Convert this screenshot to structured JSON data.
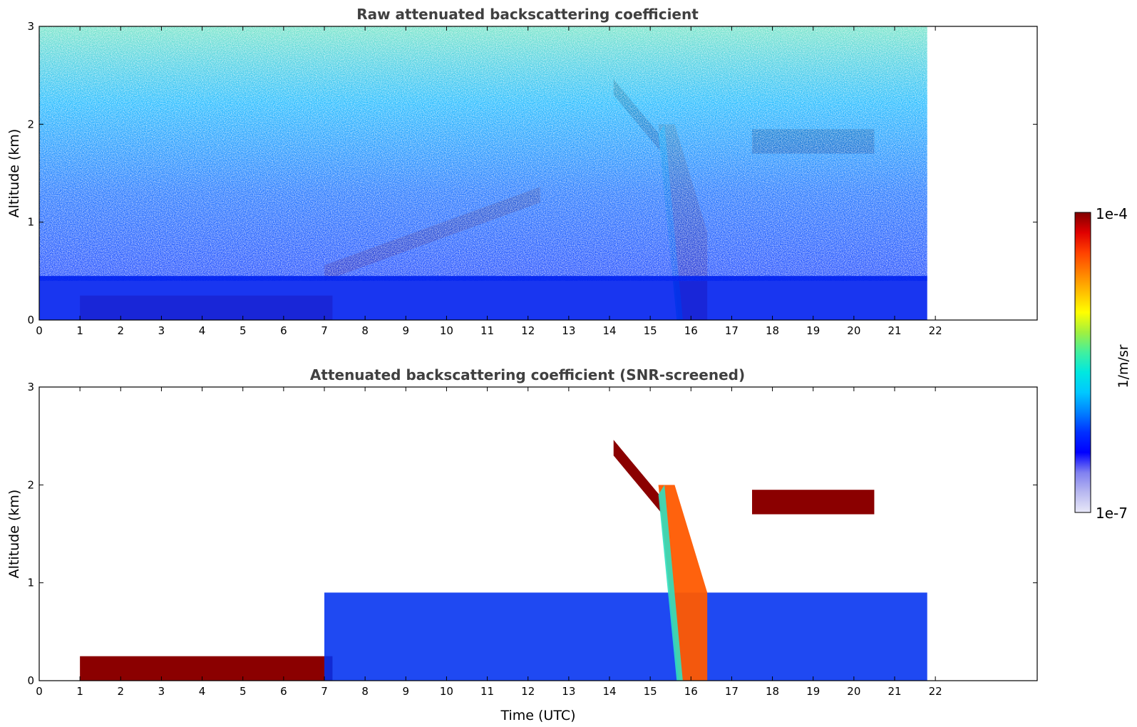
{
  "chart_data": [
    {
      "type": "heatmap",
      "title": "Raw attenuated backscattering coefficient",
      "xlabel": "",
      "ylabel": "Altitude (km)",
      "xlim": [
        0,
        24.5
      ],
      "ylim": [
        0,
        3
      ],
      "x_ticks": [
        "0",
        "1",
        "2",
        "3",
        "4",
        "5",
        "6",
        "7",
        "8",
        "9",
        "10",
        "11",
        "12",
        "13",
        "14",
        "15",
        "16",
        "17",
        "18",
        "19",
        "20",
        "21",
        "22"
      ],
      "y_ticks": [
        "0",
        "1",
        "2",
        "3"
      ],
      "data_extent_hours": [
        0,
        21.8
      ],
      "value_scale": "log",
      "features": [
        {
          "kind": "boundary_layer_aerosol",
          "start_h": 1.0,
          "end_h": 7.2,
          "alt_km": [
            0.0,
            0.25
          ],
          "level": "high"
        },
        {
          "kind": "rising_aerosol_layer",
          "start_h": 7.0,
          "end_h": 12.3,
          "alt_km_start": 0.4,
          "alt_km_end": 1.2,
          "level": "high"
        },
        {
          "kind": "cloud_layer",
          "start_h": 14.1,
          "end_h": 15.3,
          "alt_km_start": 2.3,
          "alt_km_end": 1.7,
          "level": "saturated"
        },
        {
          "kind": "precipitation_column",
          "start_h": 15.2,
          "end_h": 16.4,
          "alt_km": [
            0.0,
            2.0
          ],
          "level": "high"
        },
        {
          "kind": "cloud_layer",
          "start_h": 17.5,
          "end_h": 20.5,
          "alt_km": [
            1.7,
            1.95
          ],
          "level": "saturated"
        },
        {
          "kind": "background_noise",
          "start_h": 0.0,
          "end_h": 21.8,
          "alt_km": [
            0.4,
            3.0
          ],
          "level": "low"
        }
      ]
    },
    {
      "type": "heatmap",
      "title": "Attenuated backscattering coefficient (SNR-screened)",
      "xlabel": "Time (UTC)",
      "ylabel": "Altitude (km)",
      "xlim": [
        0,
        24.5
      ],
      "ylim": [
        0,
        3
      ],
      "x_ticks": [
        "0",
        "1",
        "2",
        "3",
        "4",
        "5",
        "6",
        "7",
        "8",
        "9",
        "10",
        "11",
        "12",
        "13",
        "14",
        "15",
        "16",
        "17",
        "18",
        "19",
        "20",
        "21",
        "22"
      ],
      "y_ticks": [
        "0",
        "1",
        "2",
        "3"
      ],
      "data_extent_hours": [
        0,
        21.8
      ],
      "value_scale": "log",
      "features": [
        {
          "kind": "boundary_layer_aerosol",
          "start_h": 1.0,
          "end_h": 7.2,
          "alt_km": [
            0.0,
            0.25
          ],
          "level": "saturated"
        },
        {
          "kind": "aerosol_layer",
          "start_h": 7.0,
          "end_h": 21.8,
          "alt_km": [
            0.0,
            0.9
          ],
          "level": "low"
        },
        {
          "kind": "cloud_layer",
          "start_h": 14.1,
          "end_h": 15.3,
          "alt_km_start": 2.3,
          "alt_km_end": 1.7,
          "level": "saturated"
        },
        {
          "kind": "precipitation_column",
          "start_h": 15.2,
          "end_h": 16.4,
          "alt_km": [
            0.0,
            2.0
          ],
          "level": "high"
        },
        {
          "kind": "cloud_layer",
          "start_h": 17.5,
          "end_h": 20.5,
          "alt_km": [
            1.7,
            1.95
          ],
          "level": "saturated"
        }
      ]
    }
  ],
  "colorbar": {
    "label": "1/m/sr",
    "max_label": "1e-4",
    "min_label": "1e-7",
    "colors": [
      "#e8e8f8",
      "#b8b8f0",
      "#8080f0",
      "#0000ff",
      "#0030ff",
      "#0080ff",
      "#00c8ff",
      "#00e8e0",
      "#40f0a0",
      "#a0f040",
      "#ffff00",
      "#ffc000",
      "#ff8000",
      "#ff4000",
      "#e00000",
      "#800000"
    ]
  }
}
